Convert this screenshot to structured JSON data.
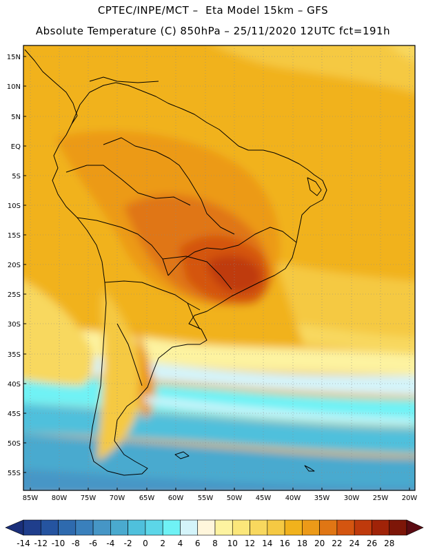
{
  "header": {
    "title_line1": "CPTEC/INPE/MCT –  Eta Model 15km – GFS",
    "title_line2": "Absolute Temperature (C) 850hPa – 25/11/2020 12UTC fct=191h"
  },
  "map": {
    "lat_labels": [
      "15N",
      "10N",
      "5N",
      "EQ",
      "5S",
      "10S",
      "15S",
      "20S",
      "25S",
      "30S",
      "35S",
      "40S",
      "45S",
      "50S",
      "55S"
    ],
    "lon_labels": [
      "85W",
      "80W",
      "75W",
      "70W",
      "65W",
      "60W",
      "55W",
      "50W",
      "45W",
      "40W",
      "35W",
      "30W",
      "25W",
      "20W"
    ],
    "variable": "Absolute Temperature",
    "units": "C",
    "level": "850hPa"
  },
  "colorbar": {
    "labels": [
      "-14",
      "-12",
      "-10",
      "-8",
      "-6",
      "-4",
      "-2",
      "0",
      "2",
      "4",
      "6",
      "8",
      "10",
      "12",
      "14",
      "16",
      "18",
      "20",
      "22",
      "24",
      "26",
      "28"
    ],
    "colors": [
      "#1f3e8c",
      "#2554a0",
      "#2e6aae",
      "#3a80bc",
      "#4696c6",
      "#4aaacf",
      "#4fc0dc",
      "#5cd6e8",
      "#6ff2f5",
      "#d4f4fa",
      "#fff6dc",
      "#fdf3a0",
      "#fbe77a",
      "#f8d85e",
      "#f5c943",
      "#f1b21c",
      "#ec9a18",
      "#e07614",
      "#d45510",
      "#bf3a0c",
      "#a02308",
      "#7d1608"
    ],
    "left_arrow_color": "#1a2f7a",
    "right_arrow_color": "#5b0b12"
  }
}
